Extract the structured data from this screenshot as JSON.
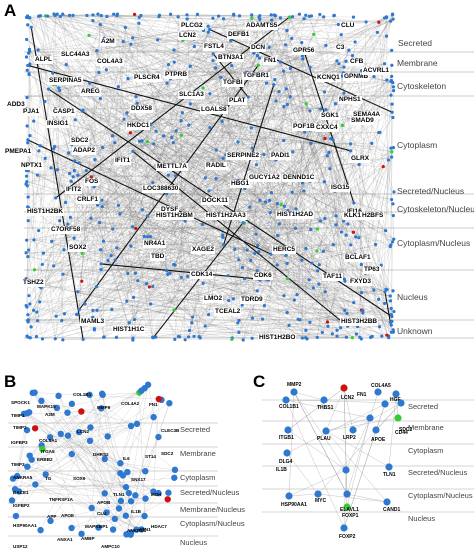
{
  "panels": {
    "A": {
      "letter": "A",
      "layers": [
        "Secreted",
        "Membrane",
        "Cytoskeleton",
        "Cytoplasm",
        "Secreted/Nucleus",
        "Cytoskeleton/Nucleus",
        "Cytoplasm/Nucleus",
        "Nucleus",
        "Unknown"
      ],
      "genes": [
        "PLCG2",
        "LCN2",
        "ADAMTS5",
        "CLU",
        "DEFB1",
        "A2M",
        "FSTL4",
        "DCN",
        "GPR56",
        "C3",
        "SLC44A3",
        "BTN3A1",
        "FN1",
        "CFB",
        "ALPL",
        "COL4A3",
        "SERPINA5",
        "PTPRB",
        "TGFBR1",
        "GPNMB",
        "ACVRL1",
        "PLSCR4",
        "TGFBI",
        "KCNQ1",
        "ADD3",
        "AREG",
        "SLC1A3",
        "PLAT",
        "NPHS1",
        "SEMA4A",
        "PJA1",
        "CASP1",
        "DDX58",
        "LGALS8",
        "SGK1",
        "SMAD9",
        "INSIG1",
        "HKDC1",
        "POF1B",
        "CXXC4",
        "SDC2",
        "ADAP2",
        "SERPINE2",
        "PMEPA1",
        "IFIT1",
        "PADI1",
        "GLRX",
        "METTL7A",
        "RADIL",
        "NPTX1",
        "GUCY1A2",
        "DENND1C",
        "FOS",
        "HBG1",
        "IFIT2",
        "LOC388630",
        "ISG15",
        "CRLF1",
        "DOCK11",
        "IFI16",
        "DYSF",
        "HIST1H2BM",
        "HIST1H2AA3",
        "HIST1H2AD",
        "HIST1H2BK",
        "KLK1",
        "H2BFS",
        "C7ORF58",
        "NR4A1",
        "BCLAF1",
        "XAGE2",
        "HERC5",
        "SOX2",
        "TBD",
        "TP63",
        "CDK14",
        "CDK6",
        "TSHZ2",
        "TAF11",
        "LMO2",
        "FXYD3",
        "TDRD9",
        "TCEAL2",
        "MAML3",
        "HIST3H2BB",
        "HIST1H1C",
        "HIST1H2BO"
      ]
    },
    "B": {
      "letter": "B",
      "layers": [
        "Secreted",
        "Membrane",
        "Cytoplasm",
        "Secreted/Nucleus",
        "Membrane/Nucleus",
        "Cytoplasm/Nucleus",
        "Nucleus"
      ],
      "genes": [
        "SPOCK1",
        "MAPK15",
        "COL1B1",
        "MMP9",
        "TIMP1",
        "A2M",
        "COL4A2",
        "FN1",
        "TIMP2",
        "LCN2",
        "CLEC3B",
        "IGFBP3",
        "COL5A1",
        "ITGA5",
        "DHRS2",
        "ERBB2",
        "IL6",
        "ST14",
        "SDC2",
        "TIMP3",
        "ANKRA5",
        "TG",
        "SOX9",
        "SNX17",
        "BACE1",
        "IGFBP2",
        "TNFRSF1A",
        "TLN1",
        "MDH",
        "APP",
        "IL1B",
        "APOB",
        "HSP90AA1",
        "MAPK8IP1",
        "CLU",
        "APOE",
        "ANXA1",
        "USP12",
        "AMBP",
        "ANKRD1",
        "ATN1",
        "HDAC7",
        "AMPC10"
      ]
    },
    "C": {
      "letter": "C",
      "layers": [
        "Secreted",
        "Membrane",
        "Cytoplasm",
        "Secreted/Nucleus",
        "Cytoplasm/Nucleus",
        "Nucleus"
      ],
      "genes": [
        "MMP2",
        "LCN2",
        "COL4A5",
        "COL1B1",
        "THBS1",
        "FN1",
        "HGF",
        "SDC2",
        "ITGB1",
        "PLAU",
        "LRP2",
        "APOE",
        "CD44",
        "DLG4",
        "TLN1",
        "IL1B",
        "ELAVL1",
        "HSP90AA1",
        "MYC",
        "FOXP1",
        "CAND1",
        "FOXP2"
      ]
    }
  },
  "colors": {
    "node": "#2f78d0",
    "node_green": "#33cc33",
    "node_red": "#cc1111",
    "edge": "#666666",
    "bg": "#ffffff"
  }
}
